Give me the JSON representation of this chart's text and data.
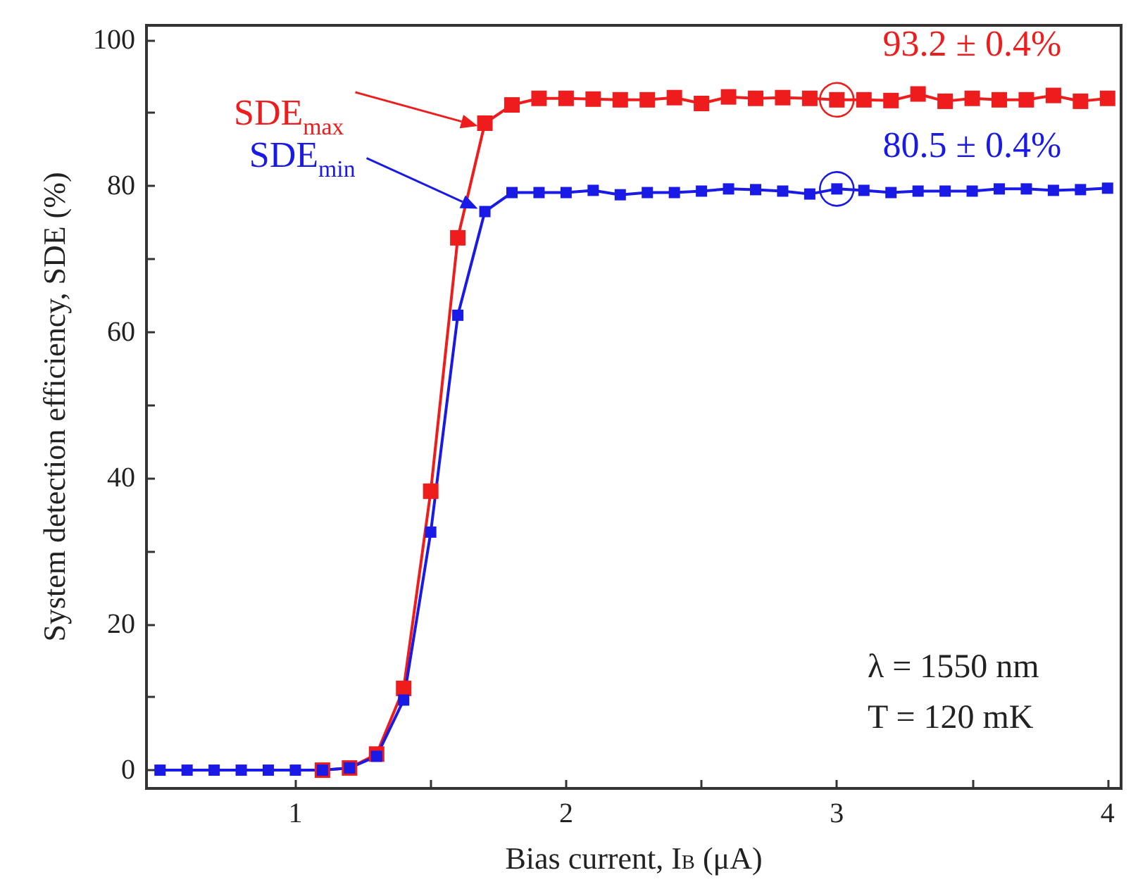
{
  "chart_data": {
    "type": "line",
    "xlabel": "Bias current, I$_{B}$ (μA)",
    "ylabel": "System detection efficiency, SDE (%)",
    "x": [
      0.5,
      0.6,
      0.7,
      0.8,
      0.9,
      1.0,
      1.1,
      1.2,
      1.3,
      1.4,
      1.5,
      1.6,
      1.7,
      1.8,
      1.9,
      2.0,
      2.1,
      2.2,
      2.3,
      2.4,
      2.5,
      2.6,
      2.7,
      2.8,
      2.9,
      3.0,
      3.1,
      3.2,
      3.3,
      3.4,
      3.5,
      3.6,
      3.7,
      3.8,
      3.9,
      4.0
    ],
    "series": [
      {
        "name": "SDE$_{max}$",
        "color": "#ee1c1c",
        "values": [
          null,
          null,
          null,
          null,
          null,
          null,
          0,
          0.3,
          2.2,
          11.2,
          38.2,
          72.9,
          88.6,
          91.1,
          92.0,
          92.0,
          91.9,
          91.8,
          91.8,
          92.1,
          91.3,
          92.2,
          92.0,
          92.1,
          92.0,
          91.8,
          91.8,
          91.7,
          92.6,
          91.6,
          92.0,
          91.8,
          91.8,
          92.4,
          91.6,
          92.0
        ]
      },
      {
        "name": "SDE$_{min}$",
        "color": "#1a1ae6",
        "values": [
          0,
          0,
          0,
          0,
          0,
          0,
          0,
          0.3,
          1.9,
          9.6,
          32.6,
          62.3,
          76.5,
          79.1,
          79.1,
          79.1,
          79.4,
          78.8,
          79.1,
          79.1,
          79.3,
          79.6,
          79.5,
          79.3,
          78.9,
          79.6,
          79.4,
          79.1,
          79.3,
          79.3,
          79.3,
          79.6,
          79.6,
          79.4,
          79.5,
          79.7
        ]
      }
    ],
    "xlim": [
      0.45,
      4.05
    ],
    "xticks": [
      1,
      {
        "value": 1.5,
        "label": null
      },
      2,
      {
        "value": 2.5,
        "label": null
      },
      3,
      {
        "value": 3.5,
        "label": null
      },
      4
    ],
    "ylim": [
      -2.5,
      102
    ],
    "yticks": [
      0,
      {
        "value": 10,
        "label": null
      },
      20,
      {
        "value": 30,
        "label": null
      },
      40,
      {
        "value": 50,
        "label": null
      },
      60,
      {
        "value": 70,
        "label": null
      },
      80,
      {
        "value": 90,
        "label": null
      },
      100
    ],
    "marker": "square",
    "line_style": "solid",
    "grid": false,
    "legend": "top left",
    "annotations": [
      {
        "text": "93.2 ± 0.4%",
        "x": 3.0,
        "y": 91.8
      },
      {
        "text": "80.5 ± 0.4%",
        "x": 3.0,
        "y": 79.6
      },
      "λ = 1550 nm",
      "T = 120 mK"
    ]
  }
}
